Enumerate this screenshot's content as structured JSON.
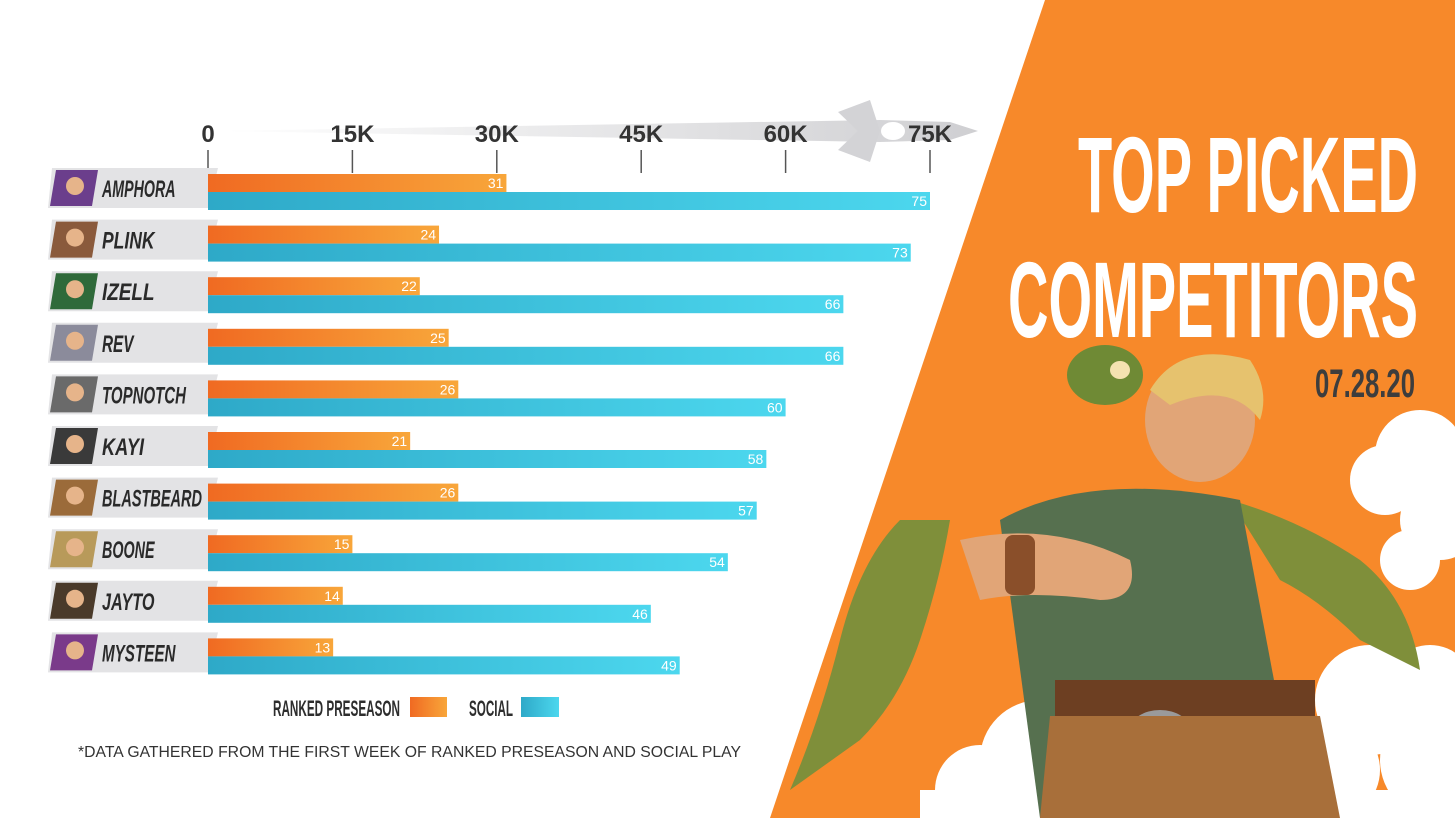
{
  "title_line1": "TOP PICKED",
  "title_line2": "COMPETITORS",
  "date": "07.28.20",
  "footnote": "*DATA GATHERED FROM THE FIRST WEEK OF RANKED PRESEASON AND SOCIAL PLAY",
  "colors": {
    "ranked": "#f58a1f",
    "social": "#3fc9e0",
    "accent_bg": "#f7892a",
    "label_bg": "#e4e4e6",
    "text": "#2d2d2d"
  },
  "chart_data": {
    "type": "bar",
    "orientation": "horizontal",
    "x_ticks": [
      "0",
      "15K",
      "30K",
      "45K",
      "60K",
      "75K"
    ],
    "x_tick_values": [
      0,
      15000,
      30000,
      45000,
      60000,
      75000
    ],
    "xlim": [
      0,
      75000
    ],
    "categories": [
      "AMPHORA",
      "PLINK",
      "IZELL",
      "REV",
      "TOPNOTCH",
      "KAYI",
      "BLASTBEARD",
      "BOONE",
      "JAYTO",
      "MYSTEEN"
    ],
    "series": [
      {
        "name": "RANKED PRESEASON",
        "values": [
          31,
          24,
          22,
          25,
          26,
          21,
          26,
          15,
          14,
          13
        ]
      },
      {
        "name": "SOCIAL",
        "values": [
          75,
          73,
          66,
          66,
          60,
          58,
          57,
          54,
          46,
          49
        ]
      }
    ],
    "legend": "bottom",
    "grid": false
  }
}
